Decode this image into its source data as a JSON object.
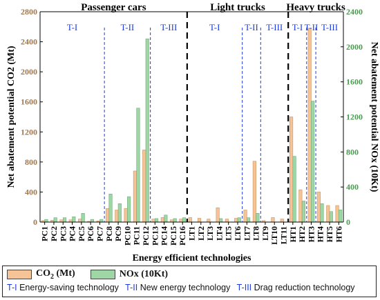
{
  "chart_data": {
    "type": "bar",
    "ylabel_left": "Net abatement potential CO2 (Mt)",
    "ylabel_right": "Net abatement potential NOx (10Kt)",
    "xlabel": "Energy efficient technologies",
    "ylim_left": [
      0,
      2800
    ],
    "ylim_right": [
      0,
      2400
    ],
    "yticks_left": [
      0,
      400,
      800,
      1200,
      1600,
      2000,
      2400,
      2800
    ],
    "yticks_right": [
      0,
      400,
      800,
      1200,
      1600,
      2000,
      2400
    ],
    "grid": false,
    "categories": [
      "PC1",
      "PC2",
      "PC3",
      "PC4",
      "PC5",
      "PC6",
      "PC7",
      "PC8",
      "PC9",
      "PC10",
      "PC11",
      "PC12",
      "PC13",
      "PC14",
      "PC15",
      "PC16",
      "LT1",
      "LT2",
      "LT3",
      "LT4",
      "LT5",
      "LT6",
      "LT7",
      "LT8",
      "LT9",
      "LT10",
      "LT11",
      "HT1",
      "HT2",
      "HT3",
      "HT4",
      "HT5",
      "HT6"
    ],
    "series": [
      {
        "name": "CO2 (Mt)",
        "axis": "left",
        "color": "#f5c396",
        "values": [
          20,
          25,
          30,
          30,
          40,
          10,
          15,
          180,
          160,
          180,
          680,
          960,
          40,
          60,
          30,
          40,
          60,
          50,
          40,
          190,
          40,
          50,
          160,
          810,
          20,
          60,
          40,
          1400,
          430,
          2580,
          400,
          220,
          220
        ]
      },
      {
        "name": "NOx (10Kt)",
        "axis": "right",
        "color": "#9ed6a6",
        "values": [
          30,
          50,
          50,
          60,
          100,
          30,
          30,
          320,
          210,
          290,
          1300,
          2090,
          40,
          80,
          40,
          50,
          0,
          0,
          0,
          40,
          0,
          50,
          50,
          100,
          0,
          0,
          0,
          750,
          240,
          1380,
          210,
          120,
          140
        ]
      }
    ],
    "groups": [
      {
        "label": "Passenger cars",
        "start": 0,
        "end": 15
      },
      {
        "label": "Light trucks",
        "start": 16,
        "end": 26
      },
      {
        "label": "Heavy trucks",
        "start": 27,
        "end": 32
      }
    ],
    "stages": [
      {
        "label": "T-I",
        "start": 0,
        "end": 6
      },
      {
        "label": "T-II",
        "start": 7,
        "end": 11
      },
      {
        "label": "T-III",
        "start": 12,
        "end": 15
      },
      {
        "label": "T-I",
        "start": 16,
        "end": 21
      },
      {
        "label": "T-II",
        "start": 22,
        "end": 23
      },
      {
        "label": "T-III",
        "start": 24,
        "end": 26
      },
      {
        "label": "T-I",
        "start": 27,
        "end": 28
      },
      {
        "label": "T-II",
        "start": 29,
        "end": 29
      },
      {
        "label": "T-III",
        "start": 30,
        "end": 32
      }
    ]
  },
  "legend": {
    "co2_prefix": "CO",
    "co2_sub": "2",
    "co2_suffix": " (Mt)",
    "nox_label": "NOx (10Kt)",
    "t1_code": "T-I",
    "t1_text": "Energy-saving technology",
    "t2_code": "T-II",
    "t2_text": "New energy  technology",
    "t3_code": "T-III",
    "t3_text": "Drag reduction technology"
  },
  "colors": {
    "left_axis": "#a0784f",
    "right_axis": "#4a9a4f",
    "stage_label": "#1a3adf",
    "stage_line": "#1a3adf",
    "group_line": "#000000"
  }
}
